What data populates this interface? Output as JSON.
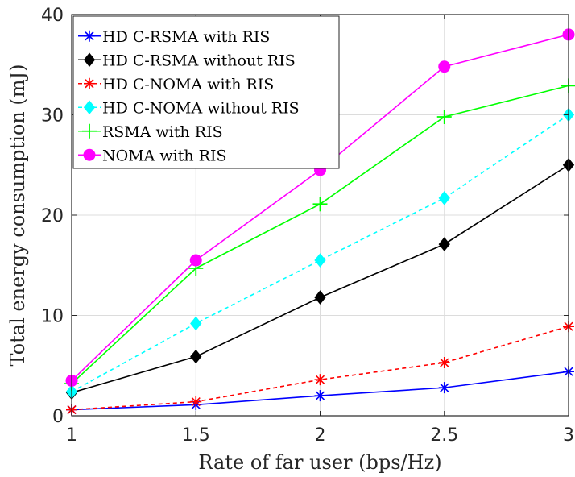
{
  "chart_data": {
    "type": "line",
    "xlabel": "Rate of far user (bps/Hz)",
    "ylabel": "Total energy consumption (mJ)",
    "x": [
      1,
      1.5,
      2,
      2.5,
      3
    ],
    "xticks": [
      "1",
      "1.5",
      "2",
      "2.5",
      "3"
    ],
    "yticks": [
      "0",
      "10",
      "20",
      "30",
      "40"
    ],
    "xlim": [
      1,
      3
    ],
    "ylim": [
      0,
      40
    ],
    "grid": true,
    "legend_position": "top-left",
    "series": [
      {
        "name": "HD C-RSMA with RIS",
        "values": [
          0.6,
          1.1,
          2.0,
          2.8,
          4.4
        ],
        "color": "#0000ff",
        "marker": "asterisk",
        "dashed": false
      },
      {
        "name": "HD C-RSMA without RIS",
        "values": [
          2.3,
          5.9,
          11.8,
          17.1,
          25.0
        ],
        "color": "#000000",
        "marker": "diamond",
        "dashed": false
      },
      {
        "name": "HD C-NOMA with RIS",
        "values": [
          0.6,
          1.4,
          3.6,
          5.3,
          8.9
        ],
        "color": "#ff0000",
        "marker": "asterisk",
        "dashed": true
      },
      {
        "name": "HD C-NOMA without RIS",
        "values": [
          2.4,
          9.2,
          15.5,
          21.7,
          30.0
        ],
        "color": "#00ffff",
        "marker": "diamond",
        "dashed": true
      },
      {
        "name": "RSMA with RIS",
        "values": [
          3.2,
          14.7,
          21.1,
          29.8,
          32.9
        ],
        "color": "#00ff00",
        "marker": "plus",
        "dashed": false
      },
      {
        "name": "NOMA with RIS",
        "values": [
          3.5,
          15.5,
          24.5,
          34.8,
          38.0
        ],
        "color": "#ff00ff",
        "marker": "circle",
        "dashed": false
      }
    ]
  }
}
